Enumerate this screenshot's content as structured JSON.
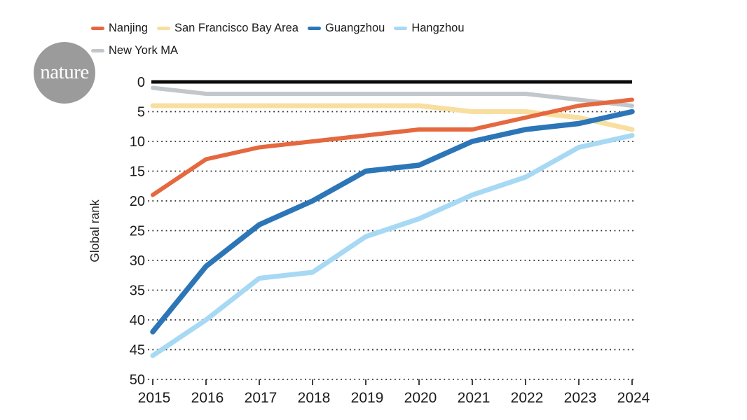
{
  "logo": {
    "text": "nature"
  },
  "legend": {
    "row_break": 4,
    "items": [
      {
        "label": "Nanjing",
        "color": "#E5683F"
      },
      {
        "label": "San Francisco Bay Area",
        "color": "#F8DFA0"
      },
      {
        "label": "Guangzhou",
        "color": "#2C76B8"
      },
      {
        "label": "Hangzhou",
        "color": "#A7D9F4"
      },
      {
        "label": "New York MA",
        "color": "#C2C7CB"
      }
    ]
  },
  "chart_data": {
    "type": "line",
    "title": "",
    "xlabel": "",
    "ylabel": "Global rank",
    "x": [
      2015,
      2016,
      2017,
      2018,
      2019,
      2020,
      2021,
      2022,
      2023,
      2024
    ],
    "xticks": [
      "2015",
      "2016",
      "2017",
      "2018",
      "2019",
      "2020",
      "2021",
      "2022",
      "2023",
      "2024"
    ],
    "yticks": [
      0,
      5,
      10,
      15,
      20,
      25,
      30,
      35,
      40,
      45,
      50
    ],
    "ylim": [
      0,
      50
    ],
    "y_axis_inverted_rank": true,
    "grid": "dotted-horizontal",
    "legend_position": "top-left",
    "series": [
      {
        "name": "Nanjing",
        "color": "#E5683F",
        "values": [
          19,
          13,
          11,
          10,
          9,
          8,
          8,
          6,
          4,
          3
        ]
      },
      {
        "name": "San Francisco Bay Area",
        "color": "#F8DFA0",
        "values": [
          4,
          4,
          4,
          4,
          4,
          4,
          5,
          5,
          6,
          8
        ]
      },
      {
        "name": "Guangzhou",
        "color": "#2C76B8",
        "values": [
          42,
          31,
          24,
          20,
          15,
          14,
          10,
          8,
          7,
          5
        ]
      },
      {
        "name": "Hangzhou",
        "color": "#A7D9F4",
        "values": [
          46,
          40,
          33,
          32,
          26,
          23,
          19,
          16,
          11,
          9
        ]
      },
      {
        "name": "New York MA",
        "color": "#C2C7CB",
        "values": [
          1,
          2,
          2,
          2,
          2,
          2,
          2,
          2,
          3,
          4
        ]
      }
    ],
    "draw_order": [
      4,
      1,
      3,
      2,
      0
    ]
  }
}
